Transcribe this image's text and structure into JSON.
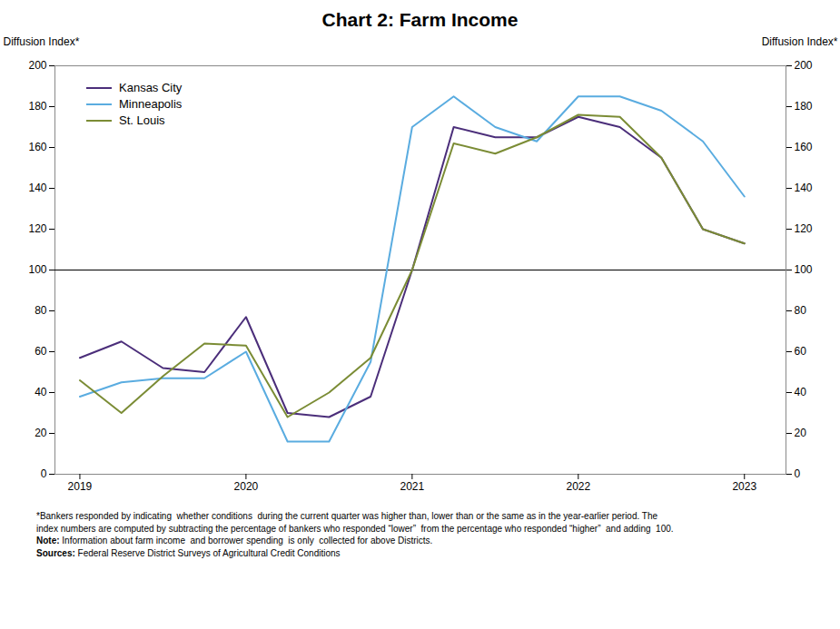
{
  "chart_data": {
    "type": "line",
    "title": "Chart 2: Farm Income",
    "ylabel": "Diffusion Index*",
    "y2label": "Diffusion Index*",
    "x": [
      2019.0,
      2019.25,
      2019.5,
      2019.75,
      2020.0,
      2020.25,
      2020.5,
      2020.75,
      2021.0,
      2021.25,
      2021.5,
      2021.75,
      2022.0,
      2022.25,
      2022.5,
      2022.75,
      2023.0
    ],
    "series": [
      {
        "name": "Kansas City",
        "color": "#4b2e7a",
        "values": [
          57,
          65,
          52,
          50,
          77,
          30,
          28,
          38,
          100,
          170,
          165,
          165,
          175,
          170,
          155,
          120,
          113
        ]
      },
      {
        "name": "Minneapolis",
        "color": "#5aace0",
        "values": [
          38,
          45,
          47,
          47,
          60,
          16,
          16,
          55,
          170,
          185,
          170,
          163,
          185,
          185,
          178,
          163,
          136
        ]
      },
      {
        "name": "St. Louis",
        "color": "#7b8c35",
        "values": [
          46,
          30,
          48,
          64,
          63,
          28,
          40,
          57,
          100,
          162,
          157,
          165,
          176,
          175,
          155,
          120,
          113
        ]
      }
    ],
    "xlim": [
      2018.85,
      2023.25
    ],
    "xticks": [
      2019,
      2020,
      2021,
      2022,
      2023
    ],
    "ylim": [
      0,
      200
    ],
    "yticks": [
      0,
      20,
      40,
      60,
      80,
      100,
      120,
      140,
      160,
      180,
      200
    ],
    "y2lim": [
      0,
      200
    ],
    "y2ticks": [
      0,
      20,
      40,
      60,
      80,
      100,
      120,
      140,
      160,
      180,
      200
    ],
    "reference_line": 100,
    "grid": false,
    "legend": "upper left",
    "footnotes": [
      {
        "text": "*Bankers responded by indicating  whether conditions  during the current quarter was higher than, lower than or the same as in the year-earlier period. The"
      },
      {
        "text": "index numbers are computed by subtracting the percentage of bankers who responded “lower”  from the percentage who responded “higher”  and adding  100."
      },
      {
        "bold": "Note:",
        "text": "Information about farm income  and borrower spending  is only  collected for above Districts."
      },
      {
        "bold": "Sources:",
        "text": "Federal Reserve District Surveys of Agricultural Credit Conditions"
      }
    ]
  }
}
